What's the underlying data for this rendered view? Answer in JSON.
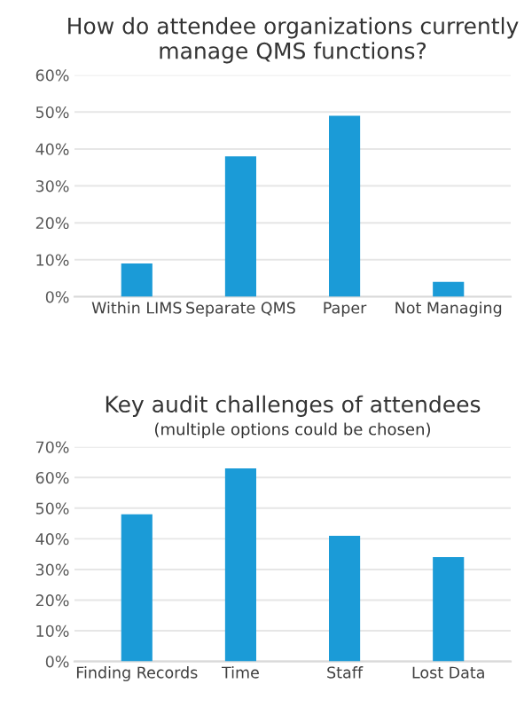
{
  "chart_data": [
    {
      "type": "bar",
      "title": "How do attendee organizations currently manage QMS functions?",
      "categories": [
        "Within LIMS",
        "Separate QMS",
        "Paper",
        "Not Managing"
      ],
      "values": [
        9,
        38,
        49,
        4
      ],
      "color": "#1b9bd7",
      "ylim": [
        0,
        60
      ],
      "yticks": [
        {
          "value": 0,
          "label": "0%"
        },
        {
          "value": 10,
          "label": "10%"
        },
        {
          "value": 20,
          "label": "20%"
        },
        {
          "value": 30,
          "label": "30%"
        },
        {
          "value": 40,
          "label": "40%"
        },
        {
          "value": 50,
          "label": "50%"
        },
        {
          "value": 60,
          "label": "60%"
        }
      ],
      "grid": "y"
    },
    {
      "type": "bar",
      "title": "Key audit challenges of attendees",
      "subtitle": "(multiple options could be chosen)",
      "categories": [
        "Finding Records",
        "Time",
        "Staff",
        "Lost Data"
      ],
      "values": [
        48,
        63,
        41,
        34
      ],
      "color": "#1b9bd7",
      "ylim": [
        0,
        70
      ],
      "yticks": [
        {
          "value": 0,
          "label": "0%"
        },
        {
          "value": 10,
          "label": "10%"
        },
        {
          "value": 20,
          "label": "20%"
        },
        {
          "value": 30,
          "label": "30%"
        },
        {
          "value": 40,
          "label": "40%"
        },
        {
          "value": 50,
          "label": "50%"
        },
        {
          "value": 60,
          "label": "60%"
        },
        {
          "value": 70,
          "label": "70%"
        }
      ],
      "grid": "y"
    }
  ]
}
